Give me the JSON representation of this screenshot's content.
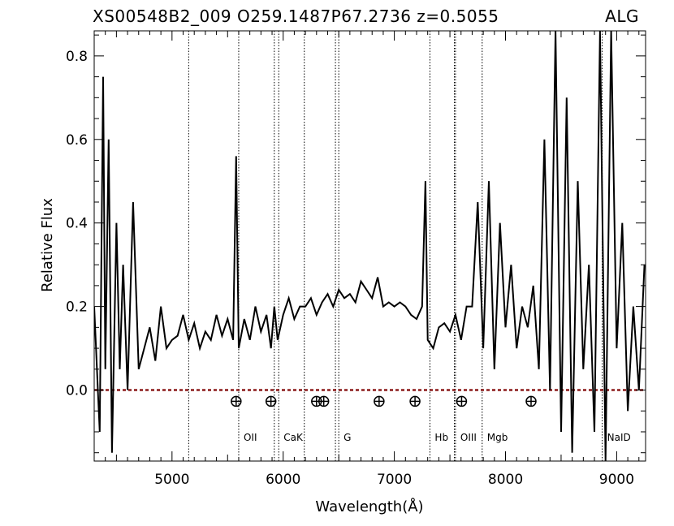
{
  "chart_data": {
    "type": "line",
    "title_left": "XS00548B2_009  O259.1487P67.2736  z=0.5055",
    "title_right": "ALG",
    "xlabel": "Wavelength(Å)",
    "ylabel": "Relative Flux",
    "xlim": [
      4300,
      9260
    ],
    "ylim": [
      -0.17,
      0.86
    ],
    "x_ticks": [
      5000,
      6000,
      7000,
      8000,
      9000
    ],
    "y_ticks": [
      0.0,
      0.2,
      0.4,
      0.6,
      0.8
    ],
    "x_tick_labels": [
      "5000",
      "6000",
      "7000",
      "8000",
      "9000"
    ],
    "y_tick_labels": [
      "0.0",
      "0.2",
      "0.4",
      "0.6",
      "0.8"
    ],
    "zero_line": {
      "y": 0.0,
      "color": "#8b1a1a"
    },
    "spectrum_color": "#000000",
    "spectrum": {
      "x": [
        4300,
        4350,
        4380,
        4400,
        4430,
        4460,
        4500,
        4530,
        4560,
        4600,
        4650,
        4700,
        4750,
        4800,
        4850,
        4900,
        4950,
        5000,
        5050,
        5100,
        5150,
        5200,
        5250,
        5300,
        5350,
        5400,
        5450,
        5500,
        5550,
        5577,
        5600,
        5650,
        5700,
        5750,
        5800,
        5850,
        5890,
        5920,
        5950,
        6000,
        6050,
        6100,
        6150,
        6200,
        6250,
        6300,
        6350,
        6400,
        6450,
        6500,
        6550,
        6600,
        6650,
        6700,
        6750,
        6800,
        6850,
        6900,
        6950,
        7000,
        7050,
        7100,
        7150,
        7200,
        7250,
        7280,
        7300,
        7350,
        7400,
        7450,
        7500,
        7550,
        7600,
        7650,
        7700,
        7750,
        7800,
        7850,
        7900,
        7950,
        8000,
        8050,
        8100,
        8150,
        8200,
        8250,
        8300,
        8350,
        8400,
        8450,
        8500,
        8550,
        8600,
        8650,
        8700,
        8750,
        8800,
        8850,
        8900,
        8950,
        9000,
        9050,
        9100,
        9150,
        9200,
        9250
      ],
      "y": [
        0.2,
        -0.1,
        0.75,
        0.05,
        0.6,
        -0.15,
        0.4,
        0.05,
        0.3,
        0.0,
        0.45,
        0.05,
        0.1,
        0.15,
        0.07,
        0.2,
        0.1,
        0.12,
        0.13,
        0.18,
        0.12,
        0.16,
        0.1,
        0.14,
        0.12,
        0.18,
        0.13,
        0.17,
        0.12,
        0.56,
        0.1,
        0.17,
        0.12,
        0.2,
        0.14,
        0.18,
        0.1,
        0.2,
        0.12,
        0.18,
        0.22,
        0.17,
        0.2,
        0.2,
        0.22,
        0.18,
        0.21,
        0.23,
        0.2,
        0.24,
        0.22,
        0.23,
        0.21,
        0.26,
        0.24,
        0.22,
        0.27,
        0.2,
        0.21,
        0.2,
        0.21,
        0.2,
        0.18,
        0.17,
        0.2,
        0.5,
        0.12,
        0.1,
        0.15,
        0.16,
        0.14,
        0.18,
        0.12,
        0.2,
        0.2,
        0.45,
        0.1,
        0.5,
        0.05,
        0.4,
        0.15,
        0.3,
        0.1,
        0.2,
        0.15,
        0.25,
        0.05,
        0.6,
        0.0,
        0.86,
        -0.1,
        0.7,
        -0.15,
        0.5,
        0.05,
        0.3,
        -0.1,
        0.86,
        -0.17,
        0.86,
        0.1,
        0.4,
        -0.05,
        0.2,
        0.0,
        0.3
      ]
    },
    "emission_lines": [
      {
        "x": 5150,
        "label": ""
      },
      {
        "x": 5600,
        "label": "OII"
      },
      {
        "x": 5920,
        "label": ""
      },
      {
        "x": 5960,
        "label": "CaK"
      },
      {
        "x": 6190,
        "label": ""
      },
      {
        "x": 6470,
        "label": ""
      },
      {
        "x": 6500,
        "label": "G"
      },
      {
        "x": 7320,
        "label": "Hb"
      },
      {
        "x": 7540,
        "label": ""
      },
      {
        "x": 7550,
        "label": "OIII"
      },
      {
        "x": 7790,
        "label": "Mgb"
      },
      {
        "x": 8870,
        "label": "NaID"
      }
    ],
    "sky_markers": [
      5577,
      5890,
      6300,
      6365,
      6863,
      7186,
      7605,
      8230
    ]
  }
}
